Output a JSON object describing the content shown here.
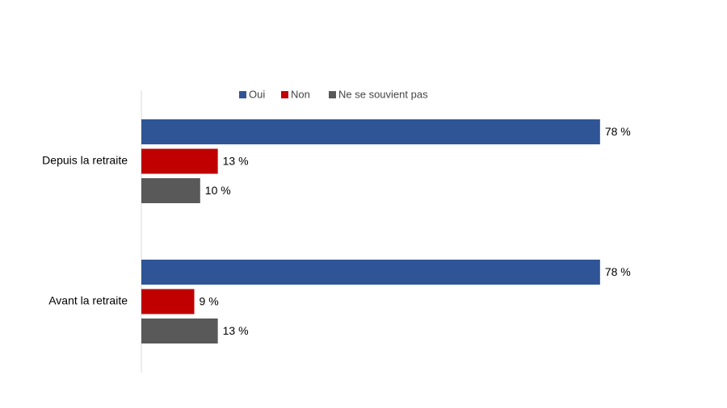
{
  "chart_data": {
    "type": "hbar",
    "categories": [
      "Depuis la retraite",
      "Avant la retraite"
    ],
    "series": [
      {
        "name": "Oui",
        "color": "#2f5597",
        "values": [
          78,
          78
        ],
        "value_labels": [
          "78 %",
          "78 %"
        ]
      },
      {
        "name": "Non",
        "color": "#c00000",
        "values": [
          13,
          9
        ],
        "value_labels": [
          "13 %",
          "9 %"
        ]
      },
      {
        "name": "Ne se souvient pas",
        "color": "#595959",
        "values": [
          10,
          13
        ],
        "value_labels": [
          "10 %",
          "13 %"
        ]
      }
    ],
    "legend": "top"
  }
}
